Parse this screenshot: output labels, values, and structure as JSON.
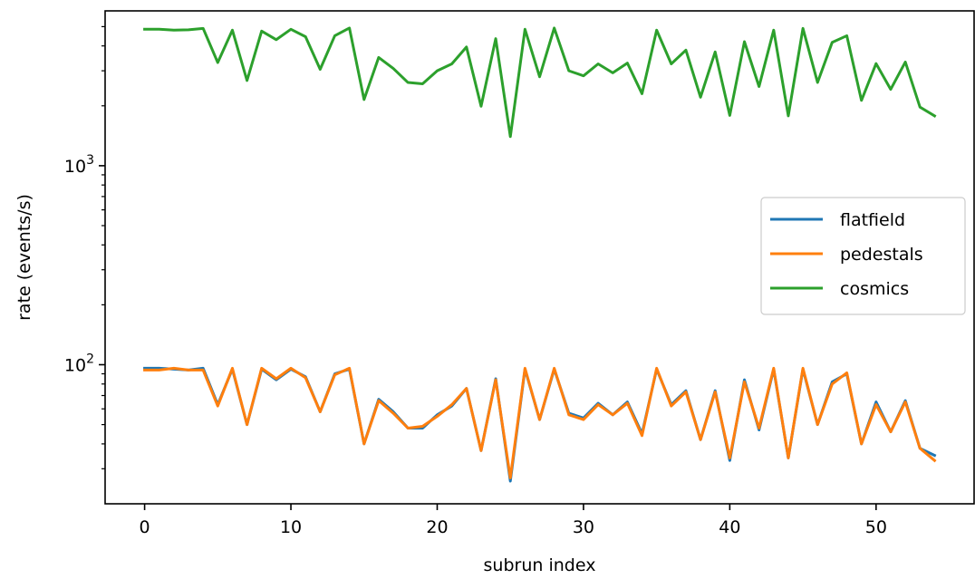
{
  "chart_data": {
    "type": "line",
    "xlabel": "subrun index",
    "ylabel": "rate (events/s)",
    "xscale": "linear",
    "yscale": "log",
    "xlim": [
      -2.7,
      56.7
    ],
    "ylim": [
      20,
      6000
    ],
    "xticks": [
      0,
      10,
      20,
      30,
      40,
      50
    ],
    "yticks": [
      {
        "value": 100,
        "base": "10",
        "exp": "2"
      },
      {
        "value": 1000,
        "base": "10",
        "exp": "3"
      }
    ],
    "grid": false,
    "legend_position": "center-right",
    "x": [
      0,
      1,
      2,
      3,
      4,
      5,
      6,
      7,
      8,
      9,
      10,
      11,
      12,
      13,
      14,
      15,
      16,
      17,
      18,
      19,
      20,
      21,
      22,
      23,
      24,
      25,
      26,
      27,
      28,
      29,
      30,
      31,
      32,
      33,
      34,
      35,
      36,
      37,
      38,
      39,
      40,
      41,
      42,
      43,
      44,
      45,
      46,
      47,
      48,
      49,
      50,
      51,
      52,
      53,
      54
    ],
    "series": [
      {
        "name": "flatfield",
        "color": "#1f77b4",
        "values": [
          96,
          96,
          95,
          94,
          96,
          63,
          95,
          50,
          95,
          84,
          95,
          87,
          58,
          90,
          95,
          40,
          67,
          58,
          48,
          48,
          56,
          62,
          76,
          37,
          85,
          26,
          95,
          53,
          95,
          57,
          54,
          64,
          56,
          65,
          45,
          95,
          63,
          74,
          42,
          74,
          33,
          84,
          47,
          95,
          34,
          95,
          50,
          82,
          90,
          40,
          65,
          46,
          66,
          38,
          35
        ]
      },
      {
        "name": "pedestals",
        "color": "#ff7f0e",
        "values": [
          94,
          94,
          96,
          94,
          94,
          62,
          96,
          50,
          96,
          85,
          96,
          86,
          58,
          89,
          96,
          40,
          66,
          57,
          48,
          49,
          55,
          63,
          76,
          37,
          84,
          27,
          96,
          53,
          96,
          56,
          53,
          63,
          56,
          64,
          44,
          96,
          62,
          73,
          42,
          73,
          34,
          82,
          48,
          96,
          34,
          96,
          50,
          80,
          91,
          40,
          63,
          46,
          65,
          38,
          33
        ]
      },
      {
        "name": "cosmics",
        "color": "#2ca02c",
        "values": [
          4850,
          4850,
          4800,
          4820,
          4900,
          3300,
          4800,
          2680,
          4750,
          4300,
          4850,
          4450,
          3050,
          4500,
          4920,
          2150,
          3500,
          3080,
          2620,
          2580,
          3000,
          3250,
          3950,
          1990,
          4350,
          1400,
          4850,
          2800,
          4920,
          3000,
          2830,
          3250,
          2930,
          3280,
          2300,
          4800,
          3250,
          3810,
          2210,
          3730,
          1790,
          4200,
          2500,
          4800,
          1780,
          4900,
          2620,
          4170,
          4500,
          2130,
          3260,
          2420,
          3320,
          1970,
          1780
        ]
      }
    ]
  }
}
